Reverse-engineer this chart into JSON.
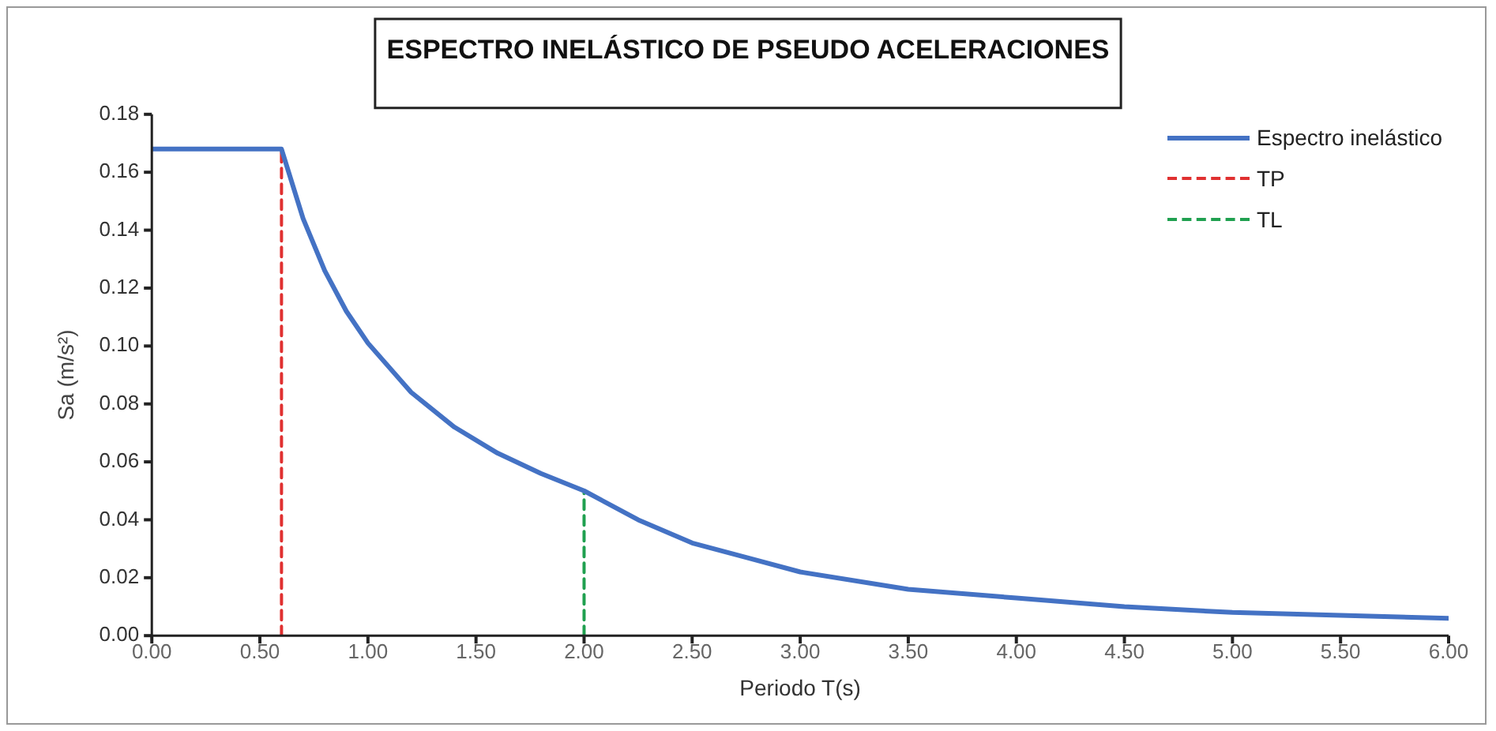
{
  "chart_data": {
    "type": "line",
    "title": "ESPECTRO INELÁSTICO DE PSEUDO ACELERACIONES",
    "xlabel": "Periodo T(s)",
    "ylabel": "Sa (m/s²)",
    "xlim": [
      0,
      6
    ],
    "xticks": [
      {
        "value": 0,
        "label": "0.00"
      },
      {
        "value": 0.5,
        "label": "0.50"
      },
      {
        "value": 1,
        "label": "1.00"
      },
      {
        "value": 1.5,
        "label": "1.50"
      },
      {
        "value": 2,
        "label": "2.00"
      },
      {
        "value": 2.5,
        "label": "2.50"
      },
      {
        "value": 3,
        "label": "3.00"
      },
      {
        "value": 3.5,
        "label": "3.50"
      },
      {
        "value": 4,
        "label": "4.00"
      },
      {
        "value": 4.5,
        "label": "4.50"
      },
      {
        "value": 5,
        "label": "5.00"
      },
      {
        "value": 5.5,
        "label": "5.50"
      },
      {
        "value": 6,
        "label": "6.00"
      }
    ],
    "ylim": [
      0,
      0.18
    ],
    "yticks": [
      {
        "value": 0,
        "label": "0.00"
      },
      {
        "value": 0.02,
        "label": "0.02"
      },
      {
        "value": 0.04,
        "label": "0.04"
      },
      {
        "value": 0.06,
        "label": "0.06"
      },
      {
        "value": 0.08,
        "label": "0.08"
      },
      {
        "value": 0.1,
        "label": "0.10"
      },
      {
        "value": 0.12,
        "label": "0.12"
      },
      {
        "value": 0.14,
        "label": "0.14"
      },
      {
        "value": 0.16,
        "label": "0.16"
      },
      {
        "value": 0.18,
        "label": "0.18"
      }
    ],
    "grid": false,
    "legend": "top right",
    "marker": "none",
    "series": [
      {
        "name": "Espectro inelástico",
        "color": "#4472c4",
        "line_style": "solid",
        "x": [
          0,
          0.6,
          0.7,
          0.8,
          0.9,
          1.0,
          1.2,
          1.4,
          1.6,
          1.8,
          2.0,
          2.25,
          2.5,
          2.75,
          3.0,
          3.5,
          4.0,
          4.5,
          5.0,
          5.5,
          6.0
        ],
        "values": [
          0.168,
          0.168,
          0.144,
          0.126,
          0.112,
          0.101,
          0.084,
          0.072,
          0.063,
          0.056,
          0.05,
          0.04,
          0.032,
          0.027,
          0.022,
          0.016,
          0.013,
          0.01,
          0.008,
          0.007,
          0.006
        ]
      },
      {
        "name": "TP",
        "color": "#e03030",
        "line_style": "dashed",
        "x": [
          0.6,
          0.6
        ],
        "values": [
          0,
          0.168
        ]
      },
      {
        "name": "TL",
        "color": "#20a050",
        "line_style": "dashed",
        "x": [
          2.0,
          2.0
        ],
        "values": [
          0,
          0.05
        ]
      }
    ]
  }
}
